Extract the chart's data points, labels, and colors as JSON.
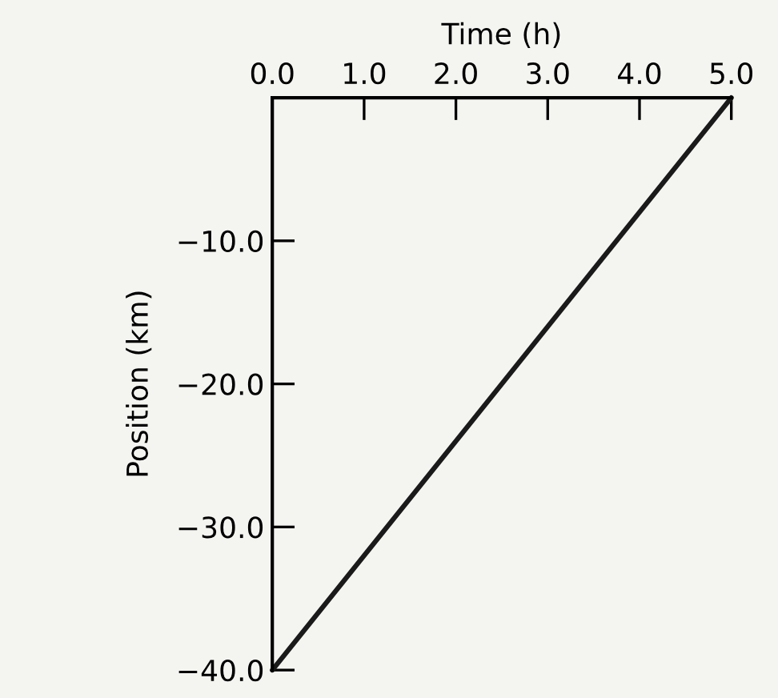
{
  "chart_data": {
    "type": "line",
    "xlabel": "Time (h)",
    "ylabel": "Position (km)",
    "x": [
      0,
      5
    ],
    "series": [
      {
        "color": "#1a1a1a",
        "values": [
          -40,
          0
        ]
      }
    ],
    "xlim": [
      0,
      5
    ],
    "ylim": [
      -40,
      0
    ],
    "xticks": [
      {
        "value": 0,
        "label": "0.0"
      },
      {
        "value": 1,
        "label": "1.0"
      },
      {
        "value": 2,
        "label": "2.0"
      },
      {
        "value": 3,
        "label": "3.0"
      },
      {
        "value": 4,
        "label": "4.0"
      },
      {
        "value": 5,
        "label": "5.0"
      }
    ],
    "yticks": [
      {
        "value": -10,
        "label": "−10.0"
      },
      {
        "value": -20,
        "label": "−20.0"
      },
      {
        "value": -30,
        "label": "−30.0"
      },
      {
        "value": -40,
        "label": "−40.0"
      }
    ],
    "grid": false,
    "legend": false,
    "marker": "none",
    "line_style": "solid"
  }
}
